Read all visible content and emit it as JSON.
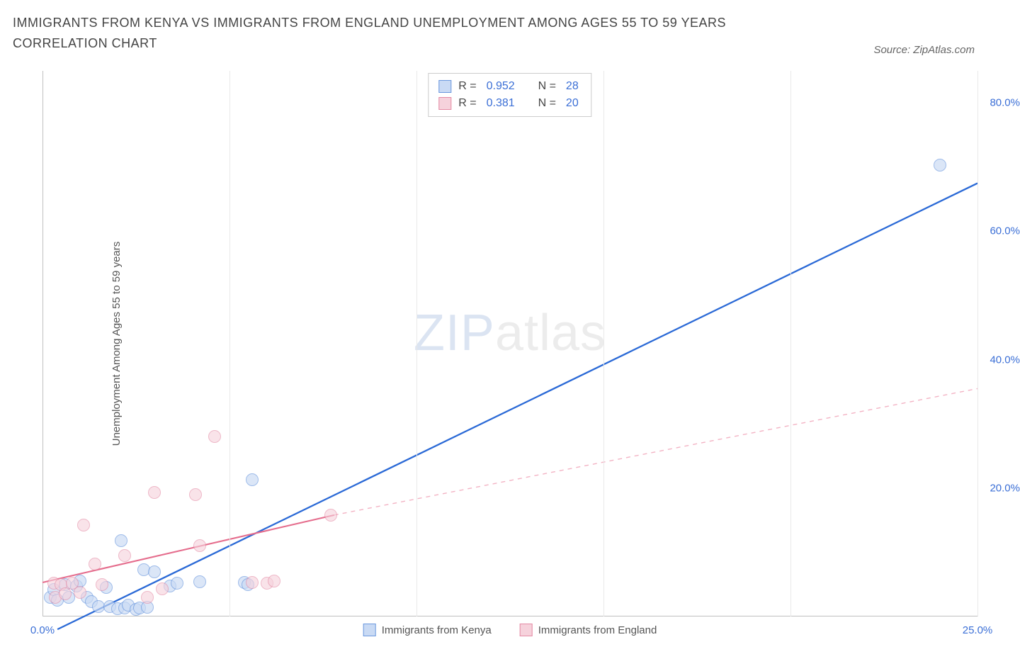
{
  "title": "IMMIGRANTS FROM KENYA VS IMMIGRANTS FROM ENGLAND UNEMPLOYMENT AMONG AGES 55 TO 59 YEARS CORRELATION CHART",
  "source_label": "Source: ZipAtlas.com",
  "watermark": {
    "part1": "ZIP",
    "part2": "atlas"
  },
  "y_axis_label": "Unemployment Among Ages 55 to 59 years",
  "chart": {
    "type": "scatter",
    "background_color": "#ffffff",
    "grid_color": "#e8e8e8",
    "axis_color": "#c0c0c0",
    "tick_color": "#3b6fd6",
    "tick_fontsize": 15,
    "label_fontsize": 15,
    "xlim": [
      0,
      25
    ],
    "ylim": [
      0,
      85
    ],
    "x_ticks": [
      {
        "v": 0,
        "label": "0.0%"
      },
      {
        "v": 25,
        "label": "25.0%"
      }
    ],
    "x_grid": [
      5,
      10,
      15,
      20,
      25
    ],
    "y_ticks": [
      {
        "v": 20,
        "label": "20.0%"
      },
      {
        "v": 40,
        "label": "40.0%"
      },
      {
        "v": 60,
        "label": "60.0%"
      },
      {
        "v": 80,
        "label": "80.0%"
      }
    ],
    "point_radius": 9,
    "point_stroke_width": 1.2,
    "series": [
      {
        "name": "Immigrants from Kenya",
        "fill": "#c9daf4",
        "stroke": "#6b98de",
        "fill_opacity": 0.65,
        "stats": {
          "R": "0.952",
          "N": "28"
        },
        "trend": {
          "x1": 0.4,
          "y1": -2.0,
          "x2": 25.0,
          "y2": 67.5,
          "color": "#2a69d6",
          "width": 2.3,
          "dash": null
        },
        "points": [
          {
            "x": 0.2,
            "y": 3.0
          },
          {
            "x": 0.3,
            "y": 4.2
          },
          {
            "x": 0.4,
            "y": 2.5
          },
          {
            "x": 0.6,
            "y": 5.0
          },
          {
            "x": 0.7,
            "y": 3.0
          },
          {
            "x": 0.9,
            "y": 4.8
          },
          {
            "x": 1.0,
            "y": 5.5
          },
          {
            "x": 1.2,
            "y": 3.0
          },
          {
            "x": 1.3,
            "y": 2.3
          },
          {
            "x": 1.5,
            "y": 1.6
          },
          {
            "x": 1.7,
            "y": 4.5
          },
          {
            "x": 1.8,
            "y": 1.5
          },
          {
            "x": 2.0,
            "y": 1.2
          },
          {
            "x": 2.1,
            "y": 11.8
          },
          {
            "x": 2.2,
            "y": 1.3
          },
          {
            "x": 2.3,
            "y": 1.8
          },
          {
            "x": 2.5,
            "y": 1.1
          },
          {
            "x": 2.6,
            "y": 1.3
          },
          {
            "x": 2.8,
            "y": 1.4
          },
          {
            "x": 2.7,
            "y": 7.3
          },
          {
            "x": 3.0,
            "y": 7.0
          },
          {
            "x": 3.4,
            "y": 4.8
          },
          {
            "x": 3.6,
            "y": 5.2
          },
          {
            "x": 4.2,
            "y": 5.4
          },
          {
            "x": 5.4,
            "y": 5.3
          },
          {
            "x": 5.5,
            "y": 5.0
          },
          {
            "x": 5.6,
            "y": 21.3
          },
          {
            "x": 24.0,
            "y": 70.3
          }
        ]
      },
      {
        "name": "Immigrants from England",
        "fill": "#f6d2dc",
        "stroke": "#e48aa4",
        "fill_opacity": 0.6,
        "stats": {
          "R": "0.381",
          "N": "20"
        },
        "trend_solid": {
          "x1": 0.0,
          "y1": 5.3,
          "x2": 7.8,
          "y2": 15.8,
          "color": "#e56d8d",
          "width": 2.1
        },
        "trend_dashed": {
          "x1": 7.8,
          "y1": 15.8,
          "x2": 25.0,
          "y2": 35.5,
          "color": "#f3b3c4",
          "width": 1.4,
          "dash": "6,6"
        },
        "points": [
          {
            "x": 0.3,
            "y": 5.2
          },
          {
            "x": 0.35,
            "y": 3.0
          },
          {
            "x": 0.5,
            "y": 5.0
          },
          {
            "x": 0.6,
            "y": 3.5
          },
          {
            "x": 0.8,
            "y": 5.2
          },
          {
            "x": 1.0,
            "y": 3.8
          },
          {
            "x": 1.1,
            "y": 14.2
          },
          {
            "x": 1.4,
            "y": 8.2
          },
          {
            "x": 1.6,
            "y": 5.0
          },
          {
            "x": 2.2,
            "y": 9.5
          },
          {
            "x": 2.8,
            "y": 3.0
          },
          {
            "x": 3.0,
            "y": 19.3
          },
          {
            "x": 3.2,
            "y": 4.3
          },
          {
            "x": 4.1,
            "y": 19.0
          },
          {
            "x": 4.2,
            "y": 11.0
          },
          {
            "x": 4.6,
            "y": 28.0
          },
          {
            "x": 5.6,
            "y": 5.3
          },
          {
            "x": 6.0,
            "y": 5.2
          },
          {
            "x": 6.2,
            "y": 5.5
          },
          {
            "x": 7.7,
            "y": 15.8
          }
        ]
      }
    ]
  },
  "stats_box": {
    "border_color": "#cccccc",
    "R_label": "R =",
    "N_label": "N ="
  },
  "legend": {
    "items": [
      {
        "label": "Immigrants from Kenya",
        "fill": "#c9daf4",
        "stroke": "#6b98de"
      },
      {
        "label": "Immigrants from England",
        "fill": "#f6d2dc",
        "stroke": "#e48aa4"
      }
    ]
  }
}
